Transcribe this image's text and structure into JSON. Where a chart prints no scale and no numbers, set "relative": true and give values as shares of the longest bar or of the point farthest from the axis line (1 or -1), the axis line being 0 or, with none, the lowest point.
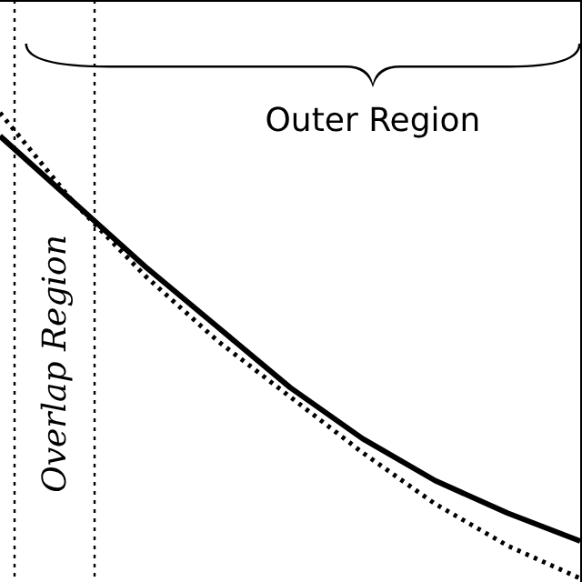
{
  "chart_data": {
    "type": "line",
    "relative": true,
    "categories": [
      null,
      null,
      null,
      null,
      null,
      null,
      null,
      null,
      null
    ],
    "series": [
      {
        "color": "#000000",
        "line_style": "solid",
        "values": [
          0.95,
          0.81,
          0.67,
          0.54,
          0.41,
          0.3,
          0.21,
          0.14,
          0.08
        ]
      },
      {
        "color": "#000000",
        "line_style": "dotted",
        "values": [
          1.0,
          0.81,
          0.65,
          0.51,
          0.39,
          0.27,
          0.16,
          0.07,
          0
        ]
      }
    ],
    "annotations": [
      "Outer Region",
      "Overlap Region"
    ]
  }
}
